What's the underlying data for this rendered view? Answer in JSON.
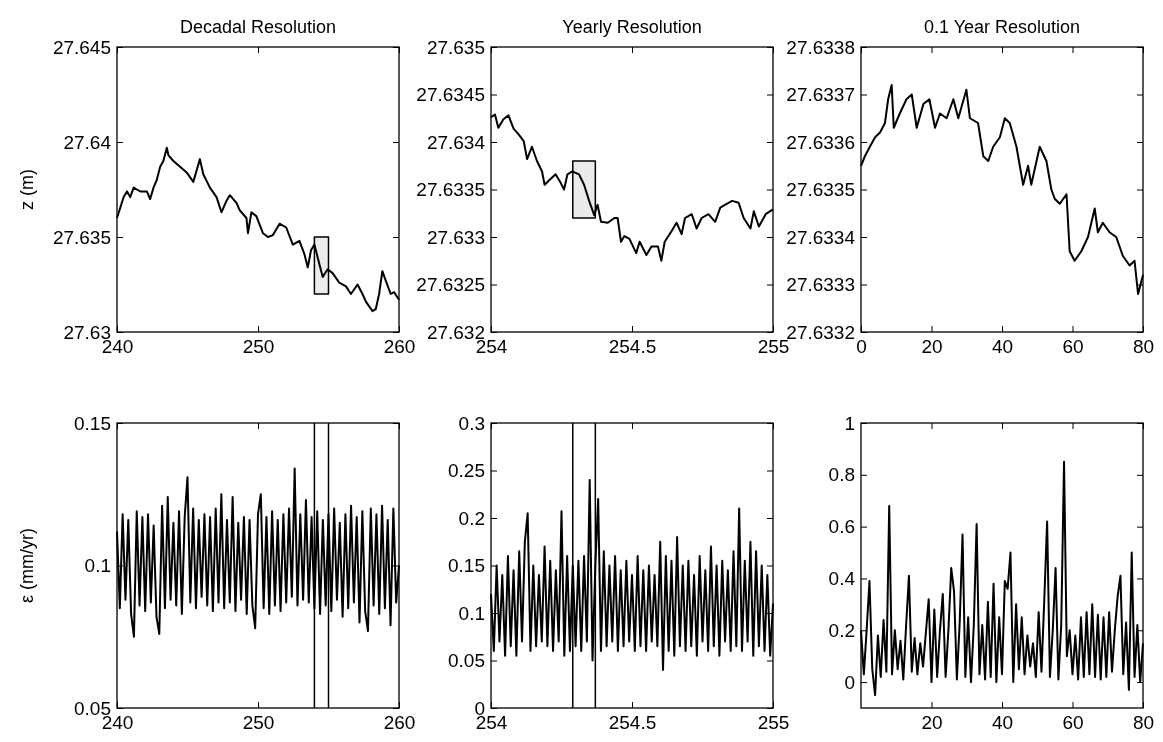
{
  "chart_data": [
    {
      "type": "line",
      "title": "Decadal Resolution",
      "ylabel": "z (m)",
      "xlim": [
        240,
        260
      ],
      "ylim": [
        27.63,
        27.645
      ],
      "xticks": [
        240,
        250,
        260
      ],
      "yticks": [
        27.63,
        27.635,
        27.64,
        27.645
      ],
      "series": [
        {
          "color": "#000000",
          "x": [
            240,
            240.47,
            240.71,
            240.94,
            241.18,
            241.41,
            241.65,
            242.12,
            242.35,
            242.59,
            242.82,
            243.06,
            243.29,
            243.53,
            243.65,
            244,
            244.47,
            244.94,
            245.41,
            245.88,
            246.12,
            246.59,
            247.06,
            247.41,
            247.76,
            248,
            248.47,
            248.71,
            249.18,
            249.29,
            249.53,
            249.88,
            250.35,
            250.71,
            251.06,
            251.53,
            252,
            252.47,
            252.94,
            253.29,
            253.53,
            253.76,
            254,
            254.24,
            254.59,
            254.94,
            255.29,
            255.76,
            256.24,
            256.59,
            257.06,
            257.41,
            257.65,
            258.12,
            258.35,
            258.59,
            258.82,
            259.06,
            259.41,
            259.65,
            260
          ],
          "values": [
            27.636,
            27.6371,
            27.6374,
            27.6371,
            27.6376,
            27.6375,
            27.6374,
            27.6374,
            27.637,
            27.6376,
            27.638,
            27.6387,
            27.639,
            27.6397,
            27.6393,
            27.639,
            27.6387,
            27.6384,
            27.6379,
            27.6391,
            27.6383,
            27.6376,
            27.6371,
            27.6363,
            27.6369,
            27.6372,
            27.6368,
            27.6364,
            27.636,
            27.6352,
            27.6363,
            27.6361,
            27.6352,
            27.635,
            27.6351,
            27.6357,
            27.6355,
            27.6346,
            27.6348,
            27.6341,
            27.6334,
            27.6343,
            27.6346,
            27.6339,
            27.6329,
            27.6333,
            27.6331,
            27.6326,
            27.6324,
            27.632,
            27.6325,
            27.632,
            27.6316,
            27.6311,
            27.6312,
            27.632,
            27.6332,
            27.6327,
            27.632,
            27.6321,
            27.6317
          ]
        },
        {
          "color": "#000000",
          "x": [
            254,
            255
          ],
          "values": [
            null,
            null
          ],
          "lower": [
            27.632,
            27.632
          ],
          "upper": [
            27.635,
            27.635
          ]
        }
      ]
    },
    {
      "type": "line",
      "title": "Yearly Resolution",
      "xlim": [
        254,
        255
      ],
      "ylim": [
        27.632,
        27.635
      ],
      "xticks": [
        254,
        254.5,
        255
      ],
      "yticks": [
        27.632,
        27.6325,
        27.633,
        27.6335,
        27.634,
        27.6345,
        27.635
      ],
      "series": [
        {
          "color": "#000000",
          "x": [
            254,
            254.014,
            254.026,
            254.044,
            254.062,
            254.08,
            254.098,
            254.116,
            254.128,
            254.145,
            254.163,
            254.181,
            254.19,
            254.211,
            254.229,
            254.247,
            254.259,
            254.271,
            254.288,
            254.312,
            254.33,
            254.348,
            254.366,
            254.378,
            254.39,
            254.414,
            254.438,
            254.449,
            254.461,
            254.473,
            254.491,
            254.515,
            254.527,
            254.551,
            254.569,
            254.592,
            254.604,
            254.616,
            254.64,
            254.658,
            254.676,
            254.688,
            254.712,
            254.729,
            254.747,
            254.771,
            254.795,
            254.813,
            254.831,
            254.855,
            254.878,
            254.896,
            254.92,
            254.932,
            254.95,
            254.974,
            255
          ],
          "values": [
            27.63426,
            27.63429,
            27.63415,
            27.63424,
            27.63428,
            27.63414,
            27.63408,
            27.63401,
            27.63382,
            27.63395,
            27.6338,
            27.63369,
            27.63355,
            27.63361,
            27.63366,
            27.63357,
            27.6335,
            27.63366,
            27.63369,
            27.63366,
            27.63355,
            27.63338,
            27.63323,
            27.63334,
            27.63316,
            27.63315,
            27.6332,
            27.6332,
            27.63295,
            27.63301,
            27.63298,
            27.63283,
            27.63295,
            27.63281,
            27.6329,
            27.6329,
            27.63275,
            27.63295,
            27.63306,
            27.63315,
            27.63303,
            27.6332,
            27.63324,
            27.63309,
            27.6332,
            27.63324,
            27.63316,
            27.63331,
            27.63334,
            27.63338,
            27.63336,
            27.6332,
            27.63309,
            27.63327,
            27.63311,
            27.63324,
            27.63329
          ]
        },
        {
          "color": "#000000",
          "x": [
            254.29,
            254.37
          ],
          "values": [
            null,
            null
          ],
          "lower": [
            27.6332,
            27.6332
          ],
          "upper": [
            27.6338,
            27.6338
          ]
        }
      ]
    },
    {
      "type": "line",
      "title": "0.1 Year Resolution",
      "xlim": [
        0,
        80
      ],
      "ylim": [
        27.6332,
        27.6338
      ],
      "xticks": [
        0,
        20,
        40,
        60,
        80
      ],
      "yticks": [
        27.6332,
        27.6333,
        27.6334,
        27.6335,
        27.6336,
        27.6337,
        27.6338
      ],
      "series": [
        {
          "color": "#000000",
          "x": [
            0,
            1.1,
            2.5,
            4,
            5.4,
            6.8,
            7.7,
            8.7,
            9.3,
            11,
            12.9,
            14.4,
            15.8,
            17.7,
            19.4,
            21,
            22.4,
            24.3,
            26.2,
            27.6,
            29.9,
            30.9,
            33.2,
            34.7,
            36.1,
            37.5,
            39.4,
            40.8,
            42.2,
            44.1,
            46,
            47.4,
            48.3,
            50.7,
            52.6,
            54,
            55,
            56.4,
            58.3,
            59.2,
            60.6,
            62.5,
            64.4,
            66.3,
            67.2,
            68.6,
            70.5,
            72.4,
            74.3,
            76.2,
            77.6,
            78.6,
            80
          ],
          "values": [
            27.63355,
            27.63357,
            27.63359,
            27.63361,
            27.63362,
            27.63364,
            27.63369,
            27.63372,
            27.63363,
            27.63366,
            27.63369,
            27.6337,
            27.63363,
            27.63368,
            27.63369,
            27.63363,
            27.63366,
            27.63365,
            27.63369,
            27.63365,
            27.63371,
            27.63365,
            27.63364,
            27.63357,
            27.63356,
            27.63359,
            27.63361,
            27.63365,
            27.63364,
            27.63359,
            27.63351,
            27.63355,
            27.63351,
            27.63359,
            27.63356,
            27.6335,
            27.63348,
            27.63347,
            27.63349,
            27.63337,
            27.63335,
            27.63337,
            27.6334,
            27.63346,
            27.63341,
            27.63343,
            27.63341,
            27.6334,
            27.63336,
            27.63334,
            27.63335,
            27.63328,
            27.63332
          ]
        }
      ]
    },
    {
      "type": "line",
      "ylabel": "ε (mm/yr)",
      "xlim": [
        240,
        260
      ],
      "ylim": [
        0.05,
        0.15
      ],
      "xticks": [
        240,
        250,
        260
      ],
      "yticks": [
        0.05,
        0.1,
        0.15
      ],
      "x": [
        240,
        240.2,
        240.4,
        240.6,
        240.8,
        241,
        241.2,
        241.4,
        241.6,
        241.8,
        242,
        242.2,
        242.4,
        242.6,
        242.8,
        243,
        243.2,
        243.4,
        243.6,
        243.8,
        244,
        244.2,
        244.4,
        244.6,
        244.8,
        245,
        245.2,
        245.4,
        245.6,
        245.8,
        246,
        246.2,
        246.4,
        246.6,
        246.8,
        247,
        247.2,
        247.4,
        247.6,
        247.8,
        248,
        248.2,
        248.4,
        248.6,
        248.8,
        249,
        249.2,
        249.4,
        249.6,
        249.8,
        250,
        250.2,
        250.4,
        250.6,
        250.8,
        251,
        251.2,
        251.4,
        251.6,
        251.8,
        252,
        252.2,
        252.4,
        252.6,
        252.8,
        253,
        253.2,
        253.4,
        253.6,
        253.8,
        254,
        254.2,
        254.4,
        254.6,
        254.8,
        255,
        255.2,
        255.4,
        255.6,
        255.8,
        256,
        256.2,
        256.4,
        256.6,
        256.8,
        257,
        257.2,
        257.4,
        257.6,
        257.8,
        258,
        258.2,
        258.4,
        258.6,
        258.8,
        259,
        259.2,
        259.4,
        259.6,
        259.8,
        260
      ],
      "series": [
        {
          "color": "#000000",
          "values": [
            0.112,
            0.085,
            0.118,
            0.088,
            0.116,
            0.083,
            0.075,
            0.119,
            0.086,
            0.117,
            0.084,
            0.118,
            0.087,
            0.114,
            0.082,
            0.076,
            0.121,
            0.085,
            0.124,
            0.088,
            0.115,
            0.086,
            0.119,
            0.083,
            0.117,
            0.131,
            0.087,
            0.12,
            0.085,
            0.116,
            0.089,
            0.118,
            0.086,
            0.117,
            0.084,
            0.12,
            0.087,
            0.125,
            0.085,
            0.116,
            0.087,
            0.124,
            0.084,
            0.115,
            0.088,
            0.117,
            0.083,
            0.116,
            0.086,
            0.078,
            0.118,
            0.125,
            0.085,
            0.117,
            0.083,
            0.119,
            0.086,
            0.116,
            0.084,
            0.118,
            0.087,
            0.12,
            0.089,
            0.134,
            0.086,
            0.118,
            0.088,
            0.123,
            0.087,
            0.117,
            0.085,
            0.119,
            0.083,
            0.116,
            0.086,
            0.118,
            0.084,
            0.12,
            0.088,
            0.115,
            0.082,
            0.118,
            0.085,
            0.121,
            0.087,
            0.117,
            0.08,
            0.119,
            0.084,
            0.077,
            0.12,
            0.086,
            0.118,
            0.083,
            0.121,
            0.085,
            0.116,
            0.079,
            0.12,
            0.087,
            0.1
          ]
        }
      ],
      "ref_lines": [
        {
          "axis": "x",
          "value": 254,
          "color": "#000000"
        },
        {
          "axis": "x",
          "value": 255,
          "color": "#000000"
        }
      ]
    },
    {
      "type": "line",
      "xlim": [
        254,
        255
      ],
      "ylim": [
        0,
        0.3
      ],
      "xticks": [
        254,
        254.5,
        255
      ],
      "yticks": [
        0,
        0.05,
        0.1,
        0.15,
        0.2,
        0.25,
        0.3
      ],
      "x": [
        254,
        254.01,
        254.02,
        254.03,
        254.04,
        254.05,
        254.06,
        254.07,
        254.08,
        254.09,
        254.1,
        254.11,
        254.12,
        254.13,
        254.14,
        254.15,
        254.16,
        254.17,
        254.18,
        254.19,
        254.2,
        254.21,
        254.22,
        254.23,
        254.24,
        254.25,
        254.26,
        254.27,
        254.28,
        254.29,
        254.3,
        254.31,
        254.32,
        254.33,
        254.34,
        254.35,
        254.36,
        254.37,
        254.38,
        254.39,
        254.4,
        254.41,
        254.42,
        254.43,
        254.44,
        254.45,
        254.46,
        254.47,
        254.48,
        254.49,
        254.5,
        254.51,
        254.52,
        254.53,
        254.54,
        254.55,
        254.56,
        254.57,
        254.58,
        254.59,
        254.6,
        254.61,
        254.62,
        254.63,
        254.64,
        254.65,
        254.66,
        254.67,
        254.68,
        254.69,
        254.7,
        254.71,
        254.72,
        254.73,
        254.74,
        254.75,
        254.76,
        254.77,
        254.78,
        254.79,
        254.8,
        254.81,
        254.82,
        254.83,
        254.84,
        254.85,
        254.86,
        254.87,
        254.88,
        254.89,
        254.9,
        254.91,
        254.92,
        254.93,
        254.94,
        254.95,
        254.96,
        254.97,
        254.98,
        254.99,
        255
      ],
      "series": [
        {
          "color": "#000000",
          "values": [
            0.12,
            0.06,
            0.15,
            0.07,
            0.14,
            0.055,
            0.16,
            0.065,
            0.145,
            0.055,
            0.165,
            0.07,
            0.175,
            0.205,
            0.06,
            0.15,
            0.065,
            0.14,
            0.07,
            0.17,
            0.065,
            0.155,
            0.06,
            0.145,
            0.07,
            0.207,
            0.055,
            0.16,
            0.06,
            0.15,
            0.065,
            0.155,
            0.06,
            0.16,
            0.07,
            0.24,
            0.05,
            0.15,
            0.22,
            0.06,
            0.165,
            0.065,
            0.15,
            0.07,
            0.16,
            0.06,
            0.145,
            0.065,
            0.155,
            0.07,
            0.14,
            0.06,
            0.16,
            0.065,
            0.145,
            0.06,
            0.15,
            0.07,
            0.14,
            0.065,
            0.175,
            0.04,
            0.16,
            0.06,
            0.155,
            0.055,
            0.18,
            0.065,
            0.15,
            0.06,
            0.155,
            0.065,
            0.14,
            0.055,
            0.16,
            0.07,
            0.145,
            0.06,
            0.17,
            0.065,
            0.15,
            0.055,
            0.155,
            0.07,
            0.145,
            0.06,
            0.165,
            0.065,
            0.21,
            0.06,
            0.155,
            0.07,
            0.175,
            0.055,
            0.165,
            0.065,
            0.15,
            0.06,
            0.14,
            0.055,
            0.11
          ]
        }
      ],
      "ref_lines": [
        {
          "axis": "x",
          "value": 254.29,
          "color": "#000000"
        },
        {
          "axis": "x",
          "value": 254.37,
          "color": "#000000"
        }
      ]
    },
    {
      "type": "line",
      "xlim": [
        0,
        80
      ],
      "ylim": [
        -0.1,
        1
      ],
      "xticks": [
        20,
        40,
        60,
        80
      ],
      "yticks": [
        0,
        0.2,
        0.4,
        0.6,
        0.8,
        1
      ],
      "x": [
        0,
        0.8,
        1.6,
        2.4,
        3.2,
        4,
        4.8,
        5.6,
        6.4,
        7.2,
        8,
        8.8,
        9.6,
        10.4,
        11.2,
        12,
        12.8,
        13.6,
        14.4,
        15.2,
        16,
        16.8,
        17.6,
        18.4,
        19.2,
        20,
        20.8,
        21.6,
        22.4,
        23.2,
        24,
        24.8,
        25.6,
        26.4,
        27.2,
        28,
        28.8,
        29.6,
        30.4,
        31.2,
        32,
        32.8,
        33.6,
        34.4,
        35.2,
        36,
        36.8,
        37.6,
        38.4,
        39.2,
        40,
        40.8,
        41.6,
        42.4,
        43.2,
        44,
        44.8,
        45.6,
        46.4,
        47.2,
        48,
        48.8,
        49.6,
        50.4,
        51.2,
        52,
        52.8,
        53.6,
        54.4,
        55.2,
        56,
        56.8,
        57.6,
        58.4,
        59.2,
        60,
        60.8,
        61.6,
        62.4,
        63.2,
        64,
        64.8,
        65.6,
        66.4,
        67.2,
        68,
        68.8,
        69.6,
        70.4,
        71.2,
        72,
        72.8,
        73.6,
        74.4,
        75.2,
        76,
        76.8,
        77.6,
        78.4,
        79.2,
        80
      ],
      "series": [
        {
          "color": "#000000",
          "values": [
            0.2,
            0.03,
            0.2,
            0.39,
            0.05,
            -0.05,
            0.18,
            0.02,
            0.24,
            0.04,
            0.68,
            0.03,
            0.2,
            0.05,
            0.16,
            0.01,
            0.22,
            0.41,
            0.04,
            0.17,
            0.03,
            0.15,
            0.06,
            0.19,
            0.32,
            0,
            0.28,
            0.02,
            0.2,
            0.34,
            0.02,
            0.2,
            0.44,
            0.35,
            0.01,
            0.23,
            0.57,
            0.02,
            0.25,
            0,
            0.22,
            0.61,
            0.03,
            0.22,
            0.01,
            0.31,
            0.02,
            0.38,
            0,
            0.25,
            0.03,
            0.39,
            0.36,
            0.5,
            0,
            0.3,
            0.05,
            0.25,
            0.03,
            0.18,
            0.06,
            0.15,
            0.02,
            0.27,
            0.04,
            0.32,
            0.62,
            0.02,
            0.2,
            0.44,
            0.01,
            0.22,
            0.85,
            0.1,
            0.2,
            0.03,
            0.18,
            0.01,
            0.25,
            0.02,
            0.27,
            0.03,
            0.3,
            0.02,
            0.26,
            0.01,
            0.25,
            0.02,
            0.27,
            0.04,
            0.2,
            0.33,
            0.41,
            0.03,
            0.23,
            -0.03,
            0.5,
            0.02,
            0.22,
            0,
            0.15
          ]
        }
      ]
    }
  ]
}
